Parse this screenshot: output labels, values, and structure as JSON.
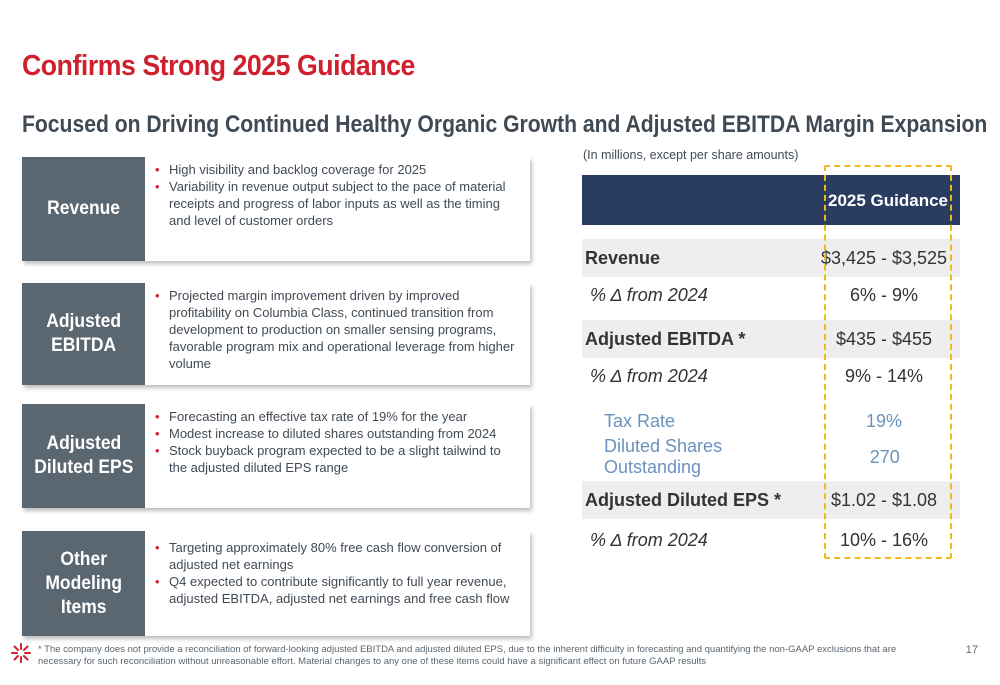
{
  "header": {
    "title": "Confirms Strong 2025 Guidance",
    "subtitle": "Focused on Driving Continued Healthy Organic Growth and Adjusted EBITDA Margin Expansion"
  },
  "cards": [
    {
      "label": [
        "Revenue"
      ],
      "bullets": [
        "High visibility and backlog coverage for 2025",
        "Variability in revenue output subject to the pace of material receipts and progress of labor inputs as well as the timing and level of customer orders"
      ]
    },
    {
      "label": [
        "Adjusted",
        "EBITDA"
      ],
      "bullets": [
        "Projected margin improvement driven by improved profitability on Columbia Class, continued transition from development to production on smaller sensing programs, favorable program mix and operational leverage from higher volume"
      ]
    },
    {
      "label": [
        "Adjusted",
        "Diluted EPS"
      ],
      "bullets": [
        "Forecasting an effective tax rate of 19% for the year",
        "Modest increase to diluted shares outstanding from 2024",
        "Stock buyback program expected to be a slight tailwind to the adjusted diluted EPS range"
      ]
    },
    {
      "label": [
        "Other",
        "Modeling",
        "Items"
      ],
      "bullets": [
        "Targeting approximately 80% free cash flow conversion of adjusted net earnings",
        "Q4 expected to contribute significantly to full year revenue, adjusted EBITDA, adjusted net earnings and free cash flow"
      ]
    }
  ],
  "table": {
    "note": "(In millions, except per share amounts)",
    "column_header": "2025 Guidance",
    "rows": [
      {
        "name": "Revenue",
        "value": "$3,425 - $3,525"
      },
      {
        "name": "% Δ from 2024",
        "value": "6% - 9%"
      },
      {
        "name": "Adjusted EBITDA *",
        "value": "$435 - $455"
      },
      {
        "name": "% Δ from 2024",
        "value": "9% - 14%"
      },
      {
        "name": "Tax Rate",
        "value": "19%"
      },
      {
        "name": "Diluted Shares Outstanding",
        "value": "270"
      },
      {
        "name": "Adjusted Diluted EPS *",
        "value": "$1.02 - $1.08"
      },
      {
        "name": "% Δ from 2024",
        "value": "10% - 16%"
      }
    ]
  },
  "footer": {
    "footnote": "* The company does not provide a reconciliation of forward-looking adjusted EBITDA and adjusted diluted EPS, due to the inherent difficulty in forecasting and quantifying the non-GAAP exclusions that are necessary for such reconciliation without unreasonable effort. Material changes to any one of these items could have a significant effect on future GAAP results",
    "page_number": "17"
  },
  "colors": {
    "accent": "#d0202e",
    "navy": "#2a3c5f",
    "label_gray": "#5a6670",
    "highlight": "#f2b81e",
    "blue_text": "#6a92bd"
  },
  "icons": {
    "logo": "company-logo-icon"
  }
}
